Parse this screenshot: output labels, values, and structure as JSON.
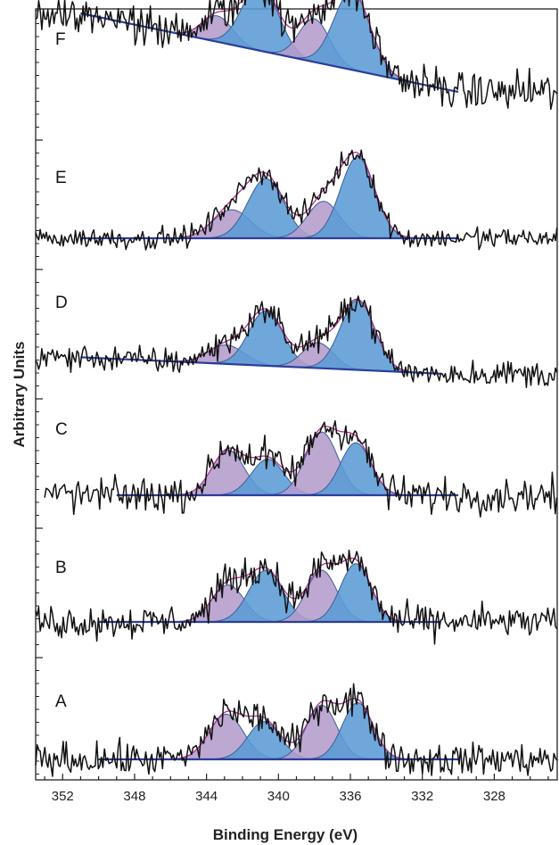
{
  "chart_data": {
    "type": "line",
    "title": "",
    "xlabel": "Binding Energy (eV)",
    "ylabel": "Arbitrary Units",
    "xlim": [
      353.5,
      324.5
    ],
    "x_reversed": true,
    "x_ticks": [
      352,
      348,
      344,
      340,
      336,
      332,
      328
    ],
    "grid": false,
    "legend": "none",
    "colors": {
      "data": "#111111",
      "envelope": "#b0308f",
      "background": "#2a3d9a",
      "blue_fill": "#5b9bd5",
      "purple_fill": "#b49ccc"
    },
    "panels": [
      {
        "label": "F",
        "data_range": [
          353.5,
          324.5
        ],
        "background_range": [
          351,
          330
        ],
        "background": [
          1.0,
          0.0
        ],
        "noise": 0.21,
        "peaks": [
          {
            "center": 343.4,
            "height": 0.33,
            "width": 0.85,
            "fill": "purple"
          },
          {
            "center": 341.0,
            "height": 0.85,
            "width": 1.0,
            "fill": "blue"
          },
          {
            "center": 338.0,
            "height": 0.55,
            "width": 0.85,
            "fill": "purple"
          },
          {
            "center": 335.9,
            "height": 1.0,
            "width": 1.0,
            "fill": "blue"
          }
        ]
      },
      {
        "label": "E",
        "data_range": [
          353.5,
          324.5
        ],
        "background_range": [
          351,
          330
        ],
        "background": [
          0.0,
          0.0
        ],
        "noise": 0.11,
        "peaks": [
          {
            "center": 342.6,
            "height": 0.34,
            "width": 1.05,
            "fill": "purple"
          },
          {
            "center": 340.7,
            "height": 0.71,
            "width": 1.0,
            "fill": "blue"
          },
          {
            "center": 337.5,
            "height": 0.44,
            "width": 0.9,
            "fill": "purple"
          },
          {
            "center": 335.6,
            "height": 0.97,
            "width": 0.95,
            "fill": "blue"
          }
        ]
      },
      {
        "label": "D",
        "data_range": [
          353.5,
          324.5
        ],
        "background_range": [
          351,
          331
        ],
        "background": [
          0.05,
          -0.15
        ],
        "noise": 0.14,
        "peaks": [
          {
            "center": 342.9,
            "height": 0.23,
            "width": 1.0,
            "fill": "purple"
          },
          {
            "center": 340.7,
            "height": 0.67,
            "width": 0.95,
            "fill": "blue"
          },
          {
            "center": 337.8,
            "height": 0.31,
            "width": 0.85,
            "fill": "purple"
          },
          {
            "center": 335.6,
            "height": 0.85,
            "width": 0.95,
            "fill": "blue"
          }
        ]
      },
      {
        "label": "C",
        "data_range": [
          353.0,
          324.5
        ],
        "background_range": [
          349,
          330
        ],
        "background": [
          0.0,
          0.0
        ],
        "noise": 0.18,
        "peaks": [
          {
            "center": 342.8,
            "height": 0.55,
            "width": 0.9,
            "fill": "purple"
          },
          {
            "center": 340.6,
            "height": 0.44,
            "width": 0.9,
            "fill": "blue"
          },
          {
            "center": 337.6,
            "height": 0.77,
            "width": 0.9,
            "fill": "purple"
          },
          {
            "center": 335.7,
            "height": 0.64,
            "width": 0.85,
            "fill": "blue"
          }
        ]
      },
      {
        "label": "B",
        "data_range": [
          353.5,
          324.5
        ],
        "background_range": [
          350,
          331
        ],
        "background": [
          0.0,
          0.0
        ],
        "noise": 0.17,
        "peaks": [
          {
            "center": 342.8,
            "height": 0.45,
            "width": 0.9,
            "fill": "purple"
          },
          {
            "center": 340.7,
            "height": 0.63,
            "width": 0.95,
            "fill": "blue"
          },
          {
            "center": 337.6,
            "height": 0.63,
            "width": 0.85,
            "fill": "purple"
          },
          {
            "center": 335.7,
            "height": 0.71,
            "width": 0.85,
            "fill": "blue"
          }
        ]
      },
      {
        "label": "A",
        "data_range": [
          353.5,
          324.5
        ],
        "background_range": [
          350,
          330
        ],
        "background": [
          0.0,
          0.0
        ],
        "noise": 0.17,
        "peaks": [
          {
            "center": 342.9,
            "height": 0.55,
            "width": 0.95,
            "fill": "purple"
          },
          {
            "center": 340.8,
            "height": 0.46,
            "width": 0.9,
            "fill": "blue"
          },
          {
            "center": 337.6,
            "height": 0.66,
            "width": 0.85,
            "fill": "purple"
          },
          {
            "center": 335.6,
            "height": 0.69,
            "width": 0.85,
            "fill": "blue"
          }
        ]
      }
    ]
  }
}
